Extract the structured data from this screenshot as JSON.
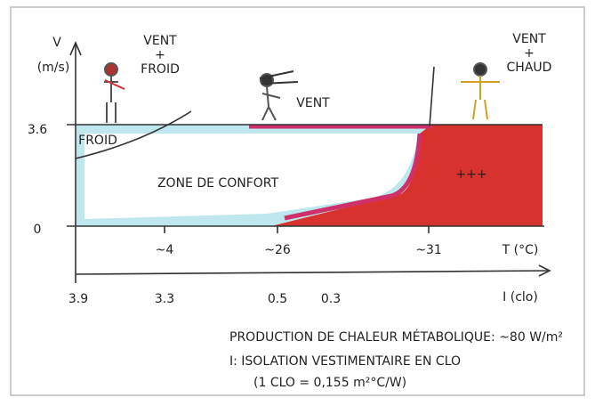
{
  "axis_v": {
    "label": "V",
    "unit": "(m/s)",
    "ticks": [
      "3.6",
      "0"
    ]
  },
  "axis_t": {
    "ticks": [
      "~4",
      "~26",
      "~31"
    ],
    "label": "T (°C)"
  },
  "axis_i": {
    "ticks": [
      "3.9",
      "3.3",
      "0.5",
      "0.3"
    ],
    "label": "I (clo)"
  },
  "figures": [
    {
      "label": [
        "VENT",
        "+",
        "FROID"
      ]
    },
    {
      "label": [
        "VENT"
      ]
    },
    {
      "label": [
        "VENT",
        "+",
        "CHAUD"
      ]
    }
  ],
  "zones": {
    "cold": "FROID",
    "comfort": "ZONE DE CONFORT",
    "hot": "+++"
  },
  "notes": [
    "PRODUCTION DE CHALEUR MÉTABOLIQUE: ~80 W/m²",
    "I: ISOLATION VESTIMENTAIRE EN CLO",
    "(1 CLO = 0,155 m²°C/W)"
  ]
}
